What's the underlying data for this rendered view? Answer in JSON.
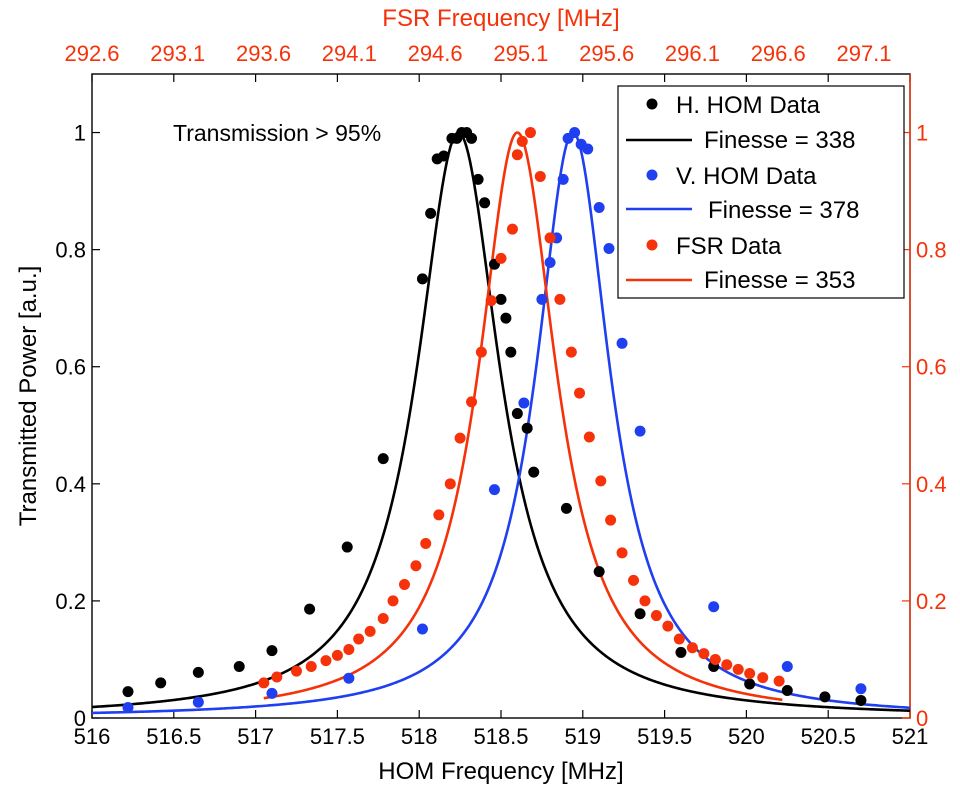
{
  "chart_data": {
    "type": "scatter",
    "title": "",
    "xlabel": "HOM Frequency [MHz]",
    "ylabel": "Transmitted Power [a.u.]",
    "x2label": "FSR Frequency [MHz]",
    "xlim": [
      516,
      521
    ],
    "ylim": [
      0,
      1.1
    ],
    "x_ticks": [
      "516",
      "516.5",
      "517",
      "517.5",
      "518",
      "518.5",
      "519",
      "519.5",
      "520",
      "520.5",
      "521"
    ],
    "y_ticks": [
      "0",
      "0.2",
      "0.4",
      "0.6",
      "0.8",
      "1"
    ],
    "x2_ticks": [
      "292.6",
      "293.1",
      "293.6",
      "294.1",
      "294.6",
      "295.1",
      "295.6",
      "296.1",
      "296.6",
      "297.1"
    ],
    "y2_ticks": [
      "0",
      "0.2",
      "0.4",
      "0.6",
      "0.8",
      "1"
    ],
    "grid": false,
    "legend_position": "top-right",
    "annotation": "Transmission > 95%",
    "colors": {
      "black": "#000000",
      "blue": "#1f3ff0",
      "red": "#f5320a"
    },
    "series": [
      {
        "name": "H. HOM Data",
        "kind": "points",
        "color": "#000000",
        "x": [
          516.22,
          516.42,
          516.65,
          516.9,
          517.1,
          517.33,
          517.56,
          517.78,
          518.02,
          518.07,
          518.11,
          518.15,
          518.2,
          518.23,
          518.26,
          518.29,
          518.32,
          518.36,
          518.4,
          518.46,
          518.5,
          518.53,
          518.56,
          518.6,
          518.66,
          518.7,
          518.9,
          519.1,
          519.35,
          519.6,
          519.8,
          520.02,
          520.25,
          520.48,
          520.7
        ],
        "y": [
          0.045,
          0.06,
          0.078,
          0.088,
          0.115,
          0.186,
          0.292,
          0.443,
          0.75,
          0.862,
          0.955,
          0.96,
          0.99,
          0.99,
          1.0,
          1.0,
          0.99,
          0.92,
          0.88,
          0.775,
          0.715,
          0.683,
          0.625,
          0.52,
          0.495,
          0.42,
          0.358,
          0.25,
          0.178,
          0.112,
          0.088,
          0.058,
          0.047,
          0.036,
          0.03
        ]
      },
      {
        "name": "Finesse = 338",
        "kind": "line",
        "color": "#000000",
        "lorentz": {
          "center": 518.24,
          "fwhm": 0.62,
          "amplitude": 1.0
        }
      },
      {
        "name": "V. HOM Data",
        "kind": "points",
        "color": "#1f3ff0",
        "x": [
          516.22,
          516.65,
          517.1,
          517.57,
          518.02,
          518.46,
          518.64,
          518.75,
          518.8,
          518.84,
          518.88,
          518.91,
          518.95,
          518.99,
          519.03,
          519.1,
          519.16,
          519.24,
          519.35,
          519.8,
          520.25,
          520.7
        ],
        "y": [
          0.018,
          0.027,
          0.042,
          0.068,
          0.152,
          0.39,
          0.538,
          0.715,
          0.778,
          0.82,
          0.92,
          0.99,
          1.0,
          0.98,
          0.972,
          0.872,
          0.802,
          0.64,
          0.49,
          0.19,
          0.088,
          0.05
        ]
      },
      {
        "name": "Finesse = 378",
        "kind": "line",
        "color": "#1f3ff0",
        "lorentz": {
          "center": 518.94,
          "fwhm": 0.55,
          "amplitude": 1.0
        }
      },
      {
        "name": "FSR Data",
        "kind": "points",
        "color": "#f5320a",
        "x": [
          517.05,
          517.13,
          517.25,
          517.34,
          517.43,
          517.5,
          517.57,
          517.63,
          517.7,
          517.78,
          517.84,
          517.91,
          517.98,
          518.04,
          518.12,
          518.19,
          518.25,
          518.32,
          518.38,
          518.44,
          518.5,
          518.57,
          518.6,
          518.63,
          518.68,
          518.74,
          518.8,
          518.86,
          518.93,
          518.98,
          519.04,
          519.11,
          519.17,
          519.24,
          519.31,
          519.38,
          519.45,
          519.52,
          519.59,
          519.67,
          519.74,
          519.81,
          519.88,
          519.95,
          520.02,
          520.1,
          520.2
        ],
        "y": [
          0.06,
          0.07,
          0.08,
          0.088,
          0.098,
          0.107,
          0.117,
          0.135,
          0.148,
          0.17,
          0.2,
          0.228,
          0.26,
          0.298,
          0.347,
          0.4,
          0.478,
          0.54,
          0.625,
          0.713,
          0.785,
          0.835,
          0.962,
          0.985,
          1.0,
          0.925,
          0.82,
          0.715,
          0.625,
          0.555,
          0.48,
          0.405,
          0.338,
          0.282,
          0.235,
          0.2,
          0.175,
          0.157,
          0.135,
          0.12,
          0.11,
          0.1,
          0.091,
          0.083,
          0.076,
          0.069,
          0.063
        ]
      },
      {
        "name": "Finesse = 353",
        "kind": "line",
        "color": "#f5320a",
        "lorentz": {
          "center": 518.6,
          "fwhm": 0.58,
          "amplitude": 1.0,
          "x_range": [
            517.05,
            520.22
          ]
        }
      }
    ]
  }
}
